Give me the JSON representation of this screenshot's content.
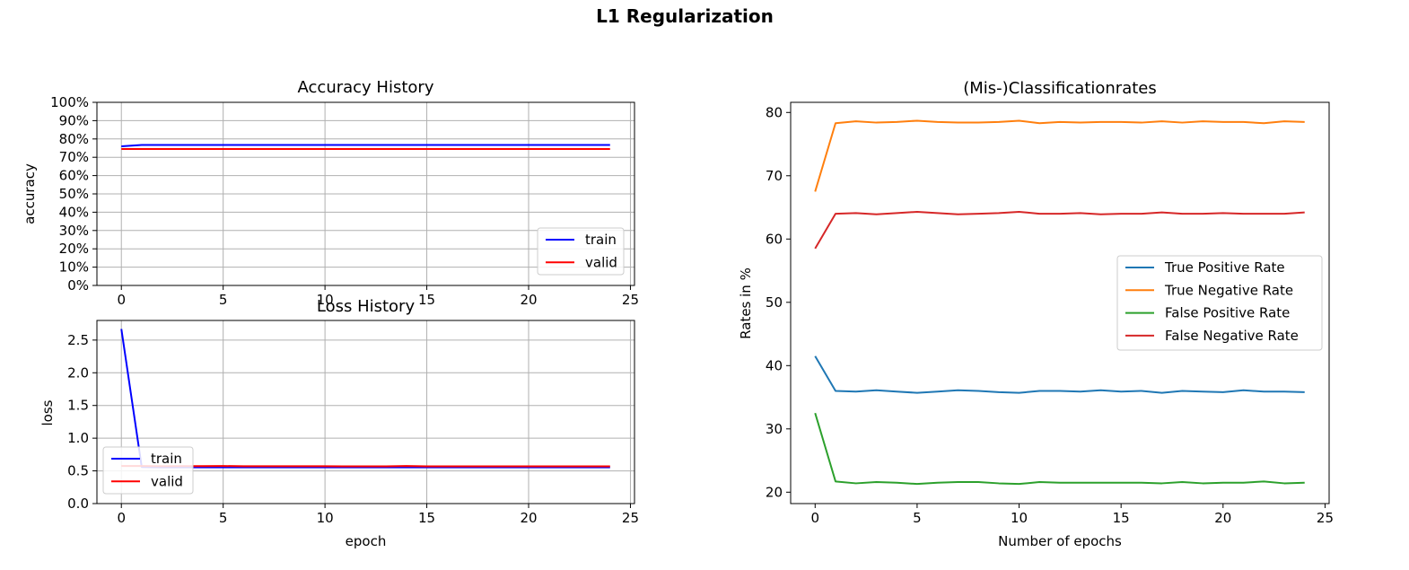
{
  "figure": {
    "suptitle": "L1 Regularization"
  },
  "chart_data": [
    {
      "id": "accuracy",
      "type": "line",
      "title": "Accuracy History",
      "xlabel": "",
      "ylabel": "accuracy",
      "xlim": [
        -1.2,
        25.2
      ],
      "ylim": [
        0,
        1
      ],
      "xticks": [
        0,
        5,
        10,
        15,
        20,
        25
      ],
      "yticks": [
        0,
        0.1,
        0.2,
        0.3,
        0.4,
        0.5,
        0.6,
        0.7,
        0.8,
        0.9,
        1.0
      ],
      "yticklabels": [
        "0%",
        "10%",
        "20%",
        "30%",
        "40%",
        "50%",
        "60%",
        "70%",
        "80%",
        "90%",
        "100%"
      ],
      "grid": true,
      "legend": "lower right",
      "x": [
        0,
        1,
        2,
        3,
        4,
        5,
        6,
        7,
        8,
        9,
        10,
        11,
        12,
        13,
        14,
        15,
        16,
        17,
        18,
        19,
        20,
        21,
        22,
        23,
        24
      ],
      "series": [
        {
          "name": "train",
          "color": "#0000ff",
          "values": [
            0.76,
            0.767,
            0.767,
            0.767,
            0.767,
            0.767,
            0.767,
            0.767,
            0.767,
            0.767,
            0.767,
            0.767,
            0.767,
            0.767,
            0.767,
            0.767,
            0.767,
            0.767,
            0.767,
            0.767,
            0.767,
            0.767,
            0.767,
            0.767,
            0.767
          ]
        },
        {
          "name": "valid",
          "color": "#ff0000",
          "values": [
            0.745,
            0.745,
            0.745,
            0.745,
            0.745,
            0.745,
            0.745,
            0.745,
            0.745,
            0.745,
            0.745,
            0.745,
            0.745,
            0.745,
            0.745,
            0.745,
            0.745,
            0.745,
            0.745,
            0.745,
            0.745,
            0.745,
            0.745,
            0.745,
            0.745
          ]
        }
      ]
    },
    {
      "id": "loss",
      "type": "line",
      "title": "Loss History",
      "xlabel": "epoch",
      "ylabel": "loss",
      "xlim": [
        -1.2,
        25.2
      ],
      "ylim": [
        0,
        2.8
      ],
      "xticks": [
        0,
        5,
        10,
        15,
        20,
        25
      ],
      "yticks": [
        0,
        0.5,
        1.0,
        1.5,
        2.0,
        2.5
      ],
      "yticklabels": [
        "0.0",
        "0.5",
        "1.0",
        "1.5",
        "2.0",
        "2.5"
      ],
      "grid": true,
      "legend": "lower left",
      "x": [
        0,
        1,
        2,
        3,
        4,
        5,
        6,
        7,
        8,
        9,
        10,
        11,
        12,
        13,
        14,
        15,
        16,
        17,
        18,
        19,
        20,
        21,
        22,
        23,
        24
      ],
      "series": [
        {
          "name": "train",
          "color": "#0000ff",
          "values": [
            2.67,
            0.56,
            0.555,
            0.555,
            0.555,
            0.555,
            0.555,
            0.555,
            0.555,
            0.555,
            0.555,
            0.555,
            0.555,
            0.555,
            0.555,
            0.555,
            0.555,
            0.555,
            0.555,
            0.555,
            0.555,
            0.555,
            0.555,
            0.555,
            0.555
          ]
        },
        {
          "name": "valid",
          "color": "#ff0000",
          "values": [
            0.575,
            0.575,
            0.572,
            0.573,
            0.573,
            0.575,
            0.571,
            0.572,
            0.572,
            0.571,
            0.571,
            0.57,
            0.57,
            0.57,
            0.574,
            0.57,
            0.57,
            0.57,
            0.57,
            0.57,
            0.57,
            0.57,
            0.57,
            0.57,
            0.57
          ]
        }
      ]
    },
    {
      "id": "rates",
      "type": "line",
      "title": "(Mis-)Classificationrates",
      "xlabel": "Number of epochs",
      "ylabel": "Rates in %",
      "xlim": [
        -1.2,
        25.2
      ],
      "ylim": [
        18.2,
        81.6
      ],
      "xticks": [
        0,
        5,
        10,
        15,
        20,
        25
      ],
      "yticks": [
        20,
        30,
        40,
        50,
        60,
        70,
        80
      ],
      "yticklabels": [
        "20",
        "30",
        "40",
        "50",
        "60",
        "70",
        "80"
      ],
      "grid": false,
      "legend": "center right",
      "x": [
        0,
        1,
        2,
        3,
        4,
        5,
        6,
        7,
        8,
        9,
        10,
        11,
        12,
        13,
        14,
        15,
        16,
        17,
        18,
        19,
        20,
        21,
        22,
        23,
        24
      ],
      "series": [
        {
          "name": "True Positive Rate",
          "color": "#1f77b4",
          "values": [
            41.5,
            36.0,
            35.9,
            36.1,
            35.9,
            35.7,
            35.9,
            36.1,
            36.0,
            35.8,
            35.7,
            36.0,
            36.0,
            35.9,
            36.1,
            35.9,
            36.0,
            35.7,
            36.0,
            35.9,
            35.8,
            36.1,
            35.9,
            35.9,
            35.8
          ]
        },
        {
          "name": "True Negative Rate",
          "color": "#ff7f0e",
          "values": [
            67.5,
            78.3,
            78.6,
            78.4,
            78.5,
            78.7,
            78.5,
            78.4,
            78.4,
            78.5,
            78.7,
            78.3,
            78.5,
            78.4,
            78.5,
            78.5,
            78.4,
            78.6,
            78.4,
            78.6,
            78.5,
            78.5,
            78.3,
            78.6,
            78.5
          ]
        },
        {
          "name": "False Positive Rate",
          "color": "#2ca02c",
          "values": [
            32.5,
            21.7,
            21.4,
            21.6,
            21.5,
            21.3,
            21.5,
            21.6,
            21.6,
            21.4,
            21.3,
            21.6,
            21.5,
            21.5,
            21.5,
            21.5,
            21.5,
            21.4,
            21.6,
            21.4,
            21.5,
            21.5,
            21.7,
            21.4,
            21.5
          ]
        },
        {
          "name": "False Negative Rate",
          "color": "#d62728",
          "values": [
            58.5,
            64.0,
            64.1,
            63.9,
            64.1,
            64.3,
            64.1,
            63.9,
            64.0,
            64.1,
            64.3,
            64.0,
            64.0,
            64.1,
            63.9,
            64.0,
            64.0,
            64.2,
            64.0,
            64.0,
            64.1,
            64.0,
            64.0,
            64.0,
            64.2
          ]
        }
      ]
    }
  ]
}
